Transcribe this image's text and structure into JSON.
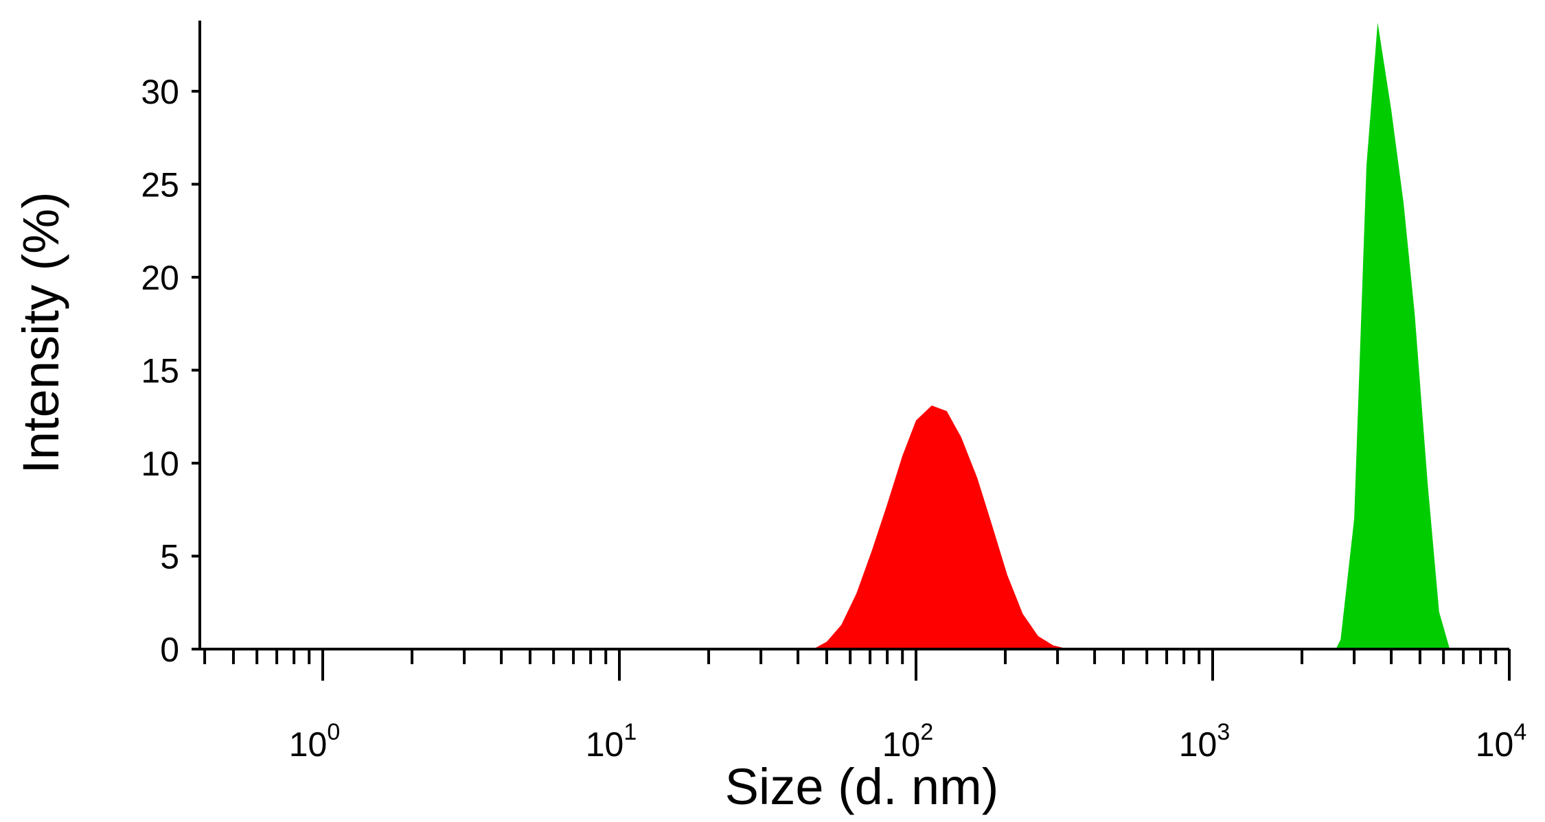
{
  "chart_data": {
    "type": "area",
    "title": "",
    "xlabel": "Size (d. nm)",
    "ylabel": "Intensity (%)",
    "xscale": "log",
    "xlim": [
      0.4,
      10000
    ],
    "ylim": [
      0,
      33.8
    ],
    "x_tick_labels": [
      {
        "base": "10",
        "exp": "0",
        "value": 1
      },
      {
        "base": "10",
        "exp": "1",
        "value": 10
      },
      {
        "base": "10",
        "exp": "2",
        "value": 100
      },
      {
        "base": "10",
        "exp": "3",
        "value": 1000
      },
      {
        "base": "10",
        "exp": "4",
        "value": 10000
      }
    ],
    "y_ticks": [
      0,
      5,
      10,
      15,
      20,
      25,
      30
    ],
    "grid": false,
    "legend": "none",
    "series": [
      {
        "color": "#ff0000",
        "x": [
          0.4,
          45,
          50,
          56,
          63,
          71,
          80,
          90,
          100,
          113,
          127,
          142,
          161,
          181,
          203,
          229,
          258,
          290,
          327,
          368,
          414,
          466,
          10000
        ],
        "values": [
          0,
          0,
          0.4,
          1.3,
          3.0,
          5.3,
          7.8,
          10.4,
          12.3,
          13.1,
          12.8,
          11.4,
          9.2,
          6.6,
          4.0,
          1.9,
          0.7,
          0.2,
          0,
          0,
          0,
          0,
          0
        ]
      },
      {
        "color": "#00cc00",
        "x": [
          0.4,
          2600,
          2700,
          3000,
          3300,
          3600,
          4000,
          4400,
          4800,
          5300,
          5800,
          6300,
          10000
        ],
        "values": [
          0,
          0,
          0.5,
          7.0,
          26.0,
          33.7,
          29.0,
          24.0,
          18.0,
          9.0,
          2.0,
          0,
          0
        ]
      }
    ]
  }
}
